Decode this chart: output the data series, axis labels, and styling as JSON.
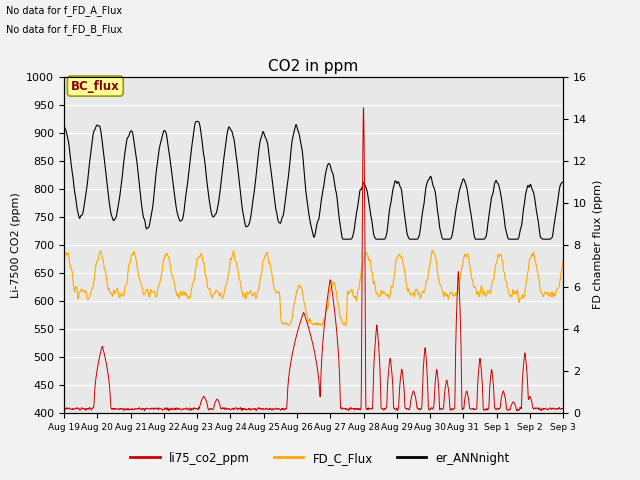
{
  "title": "CO2 in ppm",
  "ylabel_left": "Li-7500 CO2 (ppm)",
  "ylabel_right": "FD chamber flux (ppm)",
  "no_data_text_1": "No data for f_FD_A_Flux",
  "no_data_text_2": "No data for f_FD_B_Flux",
  "bc_flux_label": "BC_flux",
  "legend_entries": [
    "li75_co2_ppm",
    "FD_C_Flux",
    "er_ANNnight"
  ],
  "legend_colors": [
    "#cc0000",
    "#ffaa00",
    "#000000"
  ],
  "ylim_left": [
    400,
    1000
  ],
  "ylim_right": [
    0,
    16
  ],
  "background_color": "#e8e8e8",
  "grid_color": "#ffffff",
  "title_fontsize": 11,
  "axis_fontsize": 8,
  "tick_fontsize": 8,
  "tick_labels": [
    "Aug 19",
    "Aug 20",
    "Aug 21",
    "Aug 22",
    "Aug 23",
    "Aug 24",
    "Aug 25",
    "Aug 26",
    "Aug 27",
    "Aug 28",
    "Aug 29",
    "Aug 30",
    "Aug 31",
    "Sep 1",
    "Sep 2",
    "Sep 3"
  ],
  "total_days": 15
}
